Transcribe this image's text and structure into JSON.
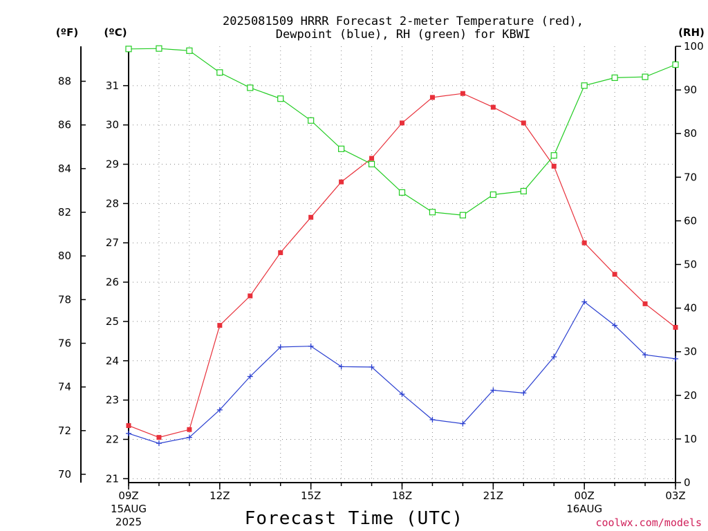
{
  "chart_data": {
    "type": "line",
    "title_line1": "2025081509 HRRR Forecast 2-meter Temperature (red),",
    "title_line2": "Dewpoint (blue), RH (green) for KBWI",
    "xlabel": "Forecast Time (UTC)",
    "credit": "coolwx.com/models",
    "units": {
      "fahrenheit": "(ºF)",
      "celsius": "(ºC)",
      "rh": "(RH)"
    },
    "x_hours": [
      0,
      1,
      2,
      3,
      4,
      5,
      6,
      7,
      8,
      9,
      10,
      11,
      12,
      13,
      14,
      15,
      16,
      17,
      18
    ],
    "x_ticks": [
      {
        "hour": 0,
        "label": "09Z",
        "sub1": "15AUG",
        "sub2": "2025"
      },
      {
        "hour": 3,
        "label": "12Z",
        "sub1": "",
        "sub2": ""
      },
      {
        "hour": 6,
        "label": "15Z",
        "sub1": "",
        "sub2": ""
      },
      {
        "hour": 9,
        "label": "18Z",
        "sub1": "",
        "sub2": ""
      },
      {
        "hour": 12,
        "label": "21Z",
        "sub1": "",
        "sub2": ""
      },
      {
        "hour": 15,
        "label": "00Z",
        "sub1": "16AUG",
        "sub2": ""
      },
      {
        "hour": 18,
        "label": "03Z",
        "sub1": "",
        "sub2": ""
      }
    ],
    "fahrenheit_ticks": [
      "70",
      "72",
      "74",
      "76",
      "78",
      "80",
      "82",
      "84",
      "86",
      "88"
    ],
    "celsius_ticks": [
      "21",
      "22",
      "23",
      "24",
      "25",
      "26",
      "27",
      "28",
      "29",
      "30",
      "31"
    ],
    "rh_ticks": [
      "0",
      "10",
      "20",
      "30",
      "40",
      "50",
      "60",
      "70",
      "80",
      "90",
      "100"
    ],
    "ylim_celsius": [
      20.9,
      32.0
    ],
    "ylim_rh": [
      0,
      100
    ],
    "series": [
      {
        "color": "#e8303a",
        "marker": "filled-square",
        "values": [
          22.35,
          22.05,
          22.25,
          24.9,
          25.65,
          26.75,
          27.65,
          28.55,
          29.15,
          30.05,
          30.7,
          30.8,
          30.45,
          30.05,
          28.95,
          27.0,
          26.2,
          25.45,
          24.85
        ]
      },
      {
        "color": "#2a3fd0",
        "marker": "plus",
        "values": [
          22.15,
          21.9,
          22.05,
          22.75,
          23.6,
          24.35,
          24.37,
          23.85,
          23.84,
          23.15,
          22.5,
          22.4,
          23.25,
          23.18,
          24.1,
          25.5,
          24.9,
          24.15,
          24.05
        ]
      },
      {
        "color": "#22cc22",
        "marker": "open-square",
        "values": [
          99.4,
          99.5,
          99.0,
          94.0,
          90.5,
          88.0,
          83.0,
          76.5,
          73.0,
          66.5,
          62.0,
          61.3,
          66.0,
          66.8,
          75.0,
          91.0,
          92.8,
          93.0,
          95.8
        ]
      }
    ]
  }
}
